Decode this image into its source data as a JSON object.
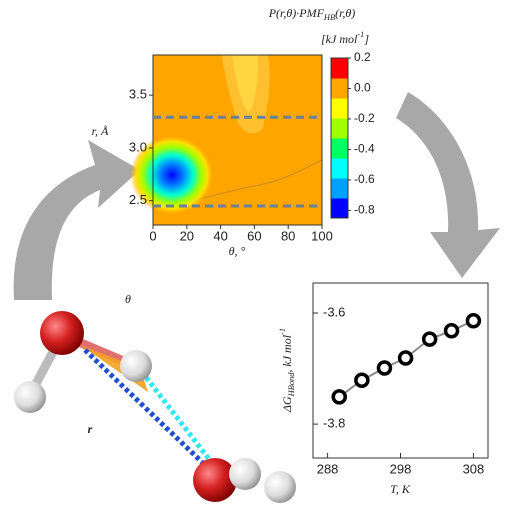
{
  "chart_data": [
    {
      "type": "contour",
      "title": {
        "text": "P(r,θ)·PMF",
        "sub": "HB",
        "tail": "(r,θ)"
      },
      "units": {
        "text": "[kJ mol",
        "sup": "-1",
        "tail": "]"
      },
      "x_label": "θ, °",
      "y_label": "r, Å",
      "xlim": [
        0,
        100
      ],
      "xticks": [
        0,
        20,
        40,
        60,
        80,
        100
      ],
      "ylim": [
        2.27,
        3.88
      ],
      "yticks": [
        {
          "value": 2.5,
          "label": "2.5"
        },
        {
          "value": 3,
          "label": "3.0"
        },
        {
          "value": 3.5,
          "label": "3.5"
        }
      ],
      "hlines": [
        2.45,
        3.29
      ],
      "hline_color": "#6a7f98",
      "clim": [
        -0.85,
        0.2
      ],
      "cticks": [
        0.2,
        {
          "value": 0,
          "label": "0.0"
        },
        -0.2,
        -0.4,
        -0.6,
        -0.8
      ],
      "colormap": [
        "#0000ff",
        "#00a0ff",
        "#00ffff",
        "#00ff60",
        "#a0ff00",
        "#ffff00",
        "#ffa500",
        "#ff0000"
      ]
    },
    {
      "type": "line",
      "x_label": "T, K",
      "y_label": {
        "text": "ΔG",
        "sub": "HBond",
        "mid": ", kJ mol",
        "sup": "-1"
      },
      "x": [
        289.6,
        292.7,
        295.8,
        298.7,
        302,
        305,
        308
      ],
      "values": [
        -3.751,
        -3.721,
        -3.699,
        -3.681,
        -3.647,
        -3.632,
        -3.614
      ],
      "color": "#000000",
      "line_color": "#8a8a8a",
      "xlim": [
        286,
        310
      ],
      "xticks": [
        288,
        298,
        308
      ],
      "ylim": [
        -3.861,
        -3.546
      ],
      "yticks": [
        -3.6,
        -3.8
      ]
    }
  ],
  "illustration": {
    "angle_label": "θ",
    "distance_label": "r"
  }
}
